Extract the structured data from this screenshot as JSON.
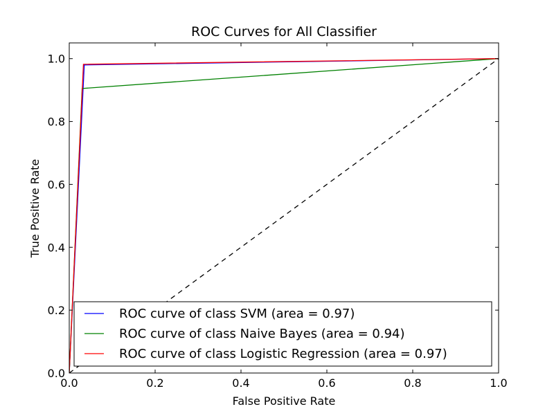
{
  "chart_data": {
    "type": "line",
    "title": "ROC Curves for All Classifier",
    "xlabel": "False Positive Rate",
    "ylabel": "True Positive Rate",
    "xlim": [
      0.0,
      1.0
    ],
    "ylim": [
      0.0,
      1.05
    ],
    "xticks": [
      "0.0",
      "0.2",
      "0.4",
      "0.6",
      "0.8",
      "1.0"
    ],
    "yticks": [
      "0.0",
      "0.2",
      "0.4",
      "0.6",
      "0.8",
      "1.0"
    ],
    "grid": false,
    "legend_position": "lower-right",
    "series": [
      {
        "name": "ROC curve of class SVM (area = 0.97)",
        "color": "#0000ff",
        "x": [
          0.0,
          0.035,
          1.0
        ],
        "y": [
          0.0,
          0.98,
          1.0
        ]
      },
      {
        "name": "ROC curve of class Naive Bayes (area = 0.94)",
        "color": "#008000",
        "x": [
          0.0,
          0.03,
          1.0
        ],
        "y": [
          0.0,
          0.905,
          1.0
        ]
      },
      {
        "name": "ROC curve of class Logistic Regression (area = 0.97)",
        "color": "#ff0000",
        "x": [
          0.0,
          0.033,
          1.0
        ],
        "y": [
          0.0,
          0.982,
          1.0
        ]
      }
    ],
    "reference_line": {
      "style": "dashed",
      "color": "#000000",
      "x": [
        0.0,
        1.0
      ],
      "y": [
        0.0,
        1.0
      ]
    }
  }
}
